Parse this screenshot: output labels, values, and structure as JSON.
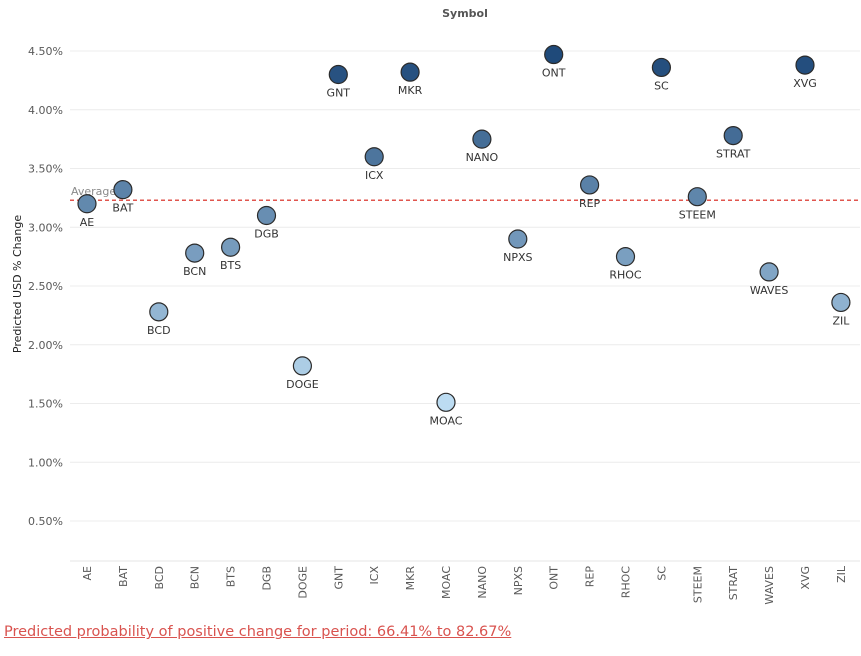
{
  "footer": {
    "link_text": "Predicted probability of positive change for period:  66.41% to 82.67%"
  },
  "colors": {
    "average_line": "#e0554e",
    "footer_link": "#d9534f"
  },
  "chart_data": {
    "type": "scatter",
    "header": "Symbol",
    "ylabel": "Predicted USD % Change",
    "ylim": [
      0.0,
      4.75
    ],
    "yticks": [
      "0.50%",
      "1.00%",
      "1.50%",
      "2.00%",
      "2.50%",
      "3.00%",
      "3.50%",
      "4.00%",
      "4.50%"
    ],
    "ytick_values": [
      0.5,
      1.0,
      1.5,
      2.0,
      2.5,
      3.0,
      3.5,
      4.0,
      4.5
    ],
    "grid": true,
    "reference_line": {
      "label": "Average",
      "value": 3.23
    },
    "categories": [
      "AE",
      "BAT",
      "BCD",
      "BCN",
      "BTS",
      "DGB",
      "DOGE",
      "GNT",
      "ICX",
      "MKR",
      "MOAC",
      "NANO",
      "NPXS",
      "ONT",
      "REP",
      "RHOC",
      "SC",
      "STEEM",
      "STRAT",
      "WAVES",
      "XVG",
      "ZIL"
    ],
    "points": [
      {
        "symbol": "AE",
        "value": 3.2,
        "label_pos": "below"
      },
      {
        "symbol": "BAT",
        "value": 3.32,
        "label_pos": "below"
      },
      {
        "symbol": "BCD",
        "value": 2.28,
        "label_pos": "below"
      },
      {
        "symbol": "BCN",
        "value": 2.78,
        "label_pos": "below"
      },
      {
        "symbol": "BTS",
        "value": 2.83,
        "label_pos": "below"
      },
      {
        "symbol": "DGB",
        "value": 3.1,
        "label_pos": "below"
      },
      {
        "symbol": "DOGE",
        "value": 1.82,
        "label_pos": "below"
      },
      {
        "symbol": "GNT",
        "value": 4.3,
        "label_pos": "below"
      },
      {
        "symbol": "ICX",
        "value": 3.6,
        "label_pos": "below"
      },
      {
        "symbol": "MKR",
        "value": 4.32,
        "label_pos": "below"
      },
      {
        "symbol": "MOAC",
        "value": 1.51,
        "label_pos": "below"
      },
      {
        "symbol": "NANO",
        "value": 3.75,
        "label_pos": "below"
      },
      {
        "symbol": "NPXS",
        "value": 2.9,
        "label_pos": "below"
      },
      {
        "symbol": "ONT",
        "value": 4.47,
        "label_pos": "below"
      },
      {
        "symbol": "REP",
        "value": 3.36,
        "label_pos": "below"
      },
      {
        "symbol": "RHOC",
        "value": 2.75,
        "label_pos": "below"
      },
      {
        "symbol": "SC",
        "value": 4.36,
        "label_pos": "below"
      },
      {
        "symbol": "STEEM",
        "value": 3.26,
        "label_pos": "below"
      },
      {
        "symbol": "STRAT",
        "value": 3.78,
        "label_pos": "below"
      },
      {
        "symbol": "WAVES",
        "value": 2.62,
        "label_pos": "below"
      },
      {
        "symbol": "XVG",
        "value": 4.38,
        "label_pos": "below"
      },
      {
        "symbol": "ZIL",
        "value": 2.36,
        "label_pos": "below"
      }
    ],
    "color_scale": {
      "low": "#bcdcf2",
      "high": "#1f4a7a"
    }
  }
}
